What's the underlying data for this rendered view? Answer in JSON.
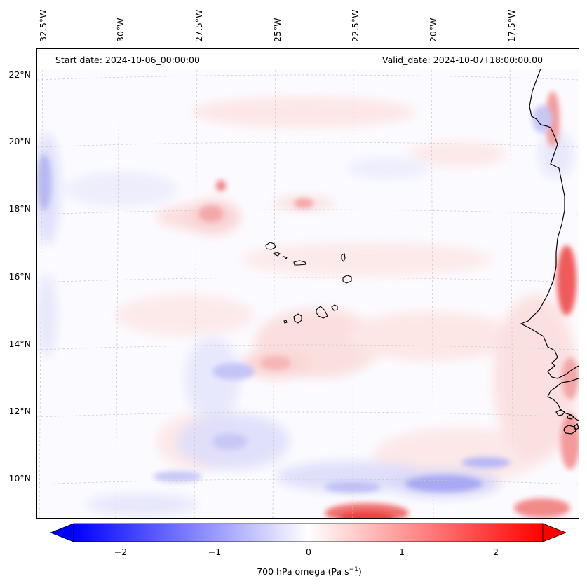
{
  "header": {
    "start_date": "Start date: 2024-10-06_00:00:00",
    "valid_date": "Valid_date: 2024-10-07T18:00:00.00"
  },
  "longitude_labels": [
    "32.5°W",
    "30°W",
    "27.5°W",
    "25°W",
    "22.5°W",
    "20°W",
    "17.5°W"
  ],
  "latitude_labels": [
    "22°N",
    "20°N",
    "18°N",
    "16°N",
    "14°N",
    "12°N",
    "10°N"
  ],
  "colorbar": {
    "ticks": [
      "−2",
      "−1",
      "0",
      "1",
      "2"
    ],
    "label_text": "700 hPa omega (Pa s",
    "label_superscript": "−1",
    "label_close": ")",
    "range": [
      -2.6,
      2.6
    ],
    "negative_color": "#0000ff",
    "zero_color": "#ffffff",
    "positive_color": "#ff0000"
  },
  "colors": {
    "coastline": "#000000",
    "gridline": "#c8c8c8"
  }
}
